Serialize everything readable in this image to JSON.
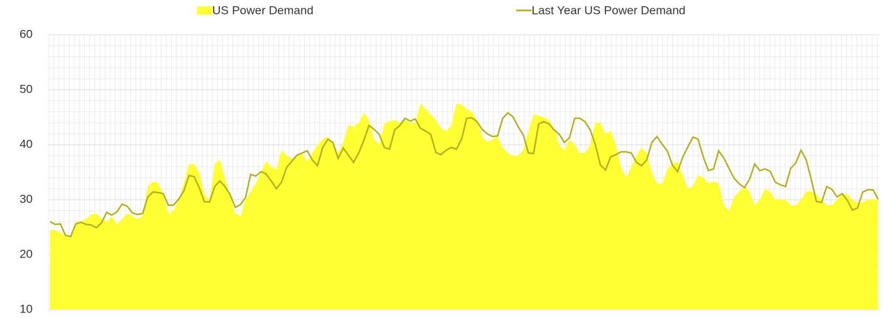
{
  "chart_data": {
    "type": "area-line",
    "ylim": [
      10,
      60
    ],
    "yticks": [
      10,
      20,
      30,
      40,
      50,
      60
    ],
    "grid": true,
    "series": [
      {
        "name": "US Power Demand",
        "type": "area",
        "color": "#ffff33",
        "values": [
          24.5,
          24.5,
          24,
          23.5,
          23,
          26,
          26,
          26.5,
          27.3,
          27.5,
          26.5,
          26,
          27,
          25.5,
          26.5,
          27.5,
          27,
          26.5,
          27,
          32.5,
          33.3,
          33,
          31,
          27.5,
          28,
          30,
          33,
          36.5,
          36.5,
          35,
          31,
          30,
          36.5,
          37.3,
          34,
          30.5,
          27.5,
          27,
          30,
          31.5,
          33,
          35,
          37,
          36,
          35.5,
          39,
          38,
          37.5,
          37.8,
          38.5,
          37,
          38.5,
          40,
          41,
          41.5,
          40,
          38.5,
          40.5,
          43.5,
          43.3,
          44,
          45.8,
          44.5,
          41,
          40,
          43.8,
          44.3,
          44.5,
          44,
          44.5,
          44,
          44,
          47.5,
          46.5,
          45.5,
          44.5,
          43,
          42.5,
          43.5,
          47.5,
          47.3,
          46.5,
          46,
          44.5,
          41.5,
          40.5,
          41,
          41.5,
          39.5,
          38.5,
          38,
          38,
          39,
          42.5,
          45.5,
          45.3,
          45,
          44.5,
          43,
          40,
          39,
          41,
          40,
          38.5,
          38.5,
          40,
          44,
          44,
          42,
          42.5,
          40,
          36,
          34,
          36,
          38,
          39.5,
          38.5,
          35,
          33,
          32.8,
          35.5,
          36.5,
          37,
          34.5,
          32,
          32.5,
          34.5,
          34,
          33,
          33.3,
          33,
          29,
          28,
          30.5,
          31.5,
          32.5,
          31.5,
          29,
          30,
          32,
          31.5,
          30,
          30,
          30,
          29,
          29,
          30,
          31.5,
          31.5,
          31,
          30,
          29,
          29,
          30,
          31,
          31,
          30,
          29.5,
          29.5,
          30,
          30,
          30
        ]
      },
      {
        "name": "Last Year US Power Demand",
        "type": "line",
        "color": "#b0b020",
        "values": [
          26,
          25.5,
          25.6,
          23.5,
          23.3,
          25.6,
          25.9,
          25.5,
          25.4,
          24.9,
          25.8,
          27.7,
          27.2,
          27.8,
          29.2,
          28.8,
          27.6,
          27.3,
          27.5,
          30.5,
          31.4,
          31.3,
          31.1,
          29,
          29,
          30.1,
          31.6,
          34.4,
          34.2,
          32.2,
          29.6,
          29.6,
          32.4,
          33.4,
          32.4,
          30.9,
          28.6,
          29.1,
          30.4,
          34.6,
          34.3,
          35.1,
          34.7,
          33.4,
          32,
          33.2,
          35.9,
          37,
          38.1,
          38.5,
          38.9,
          37.2,
          36.2,
          39.5,
          41,
          40.4,
          37.5,
          39.4,
          38.1,
          36.8,
          38.5,
          40.8,
          43.5,
          42.8,
          41.9,
          39.5,
          39.2,
          42.7,
          43.5,
          44.8,
          44.3,
          44.7,
          43,
          42.5,
          41.9,
          38.6,
          38.2,
          39,
          39.5,
          39.2,
          41,
          44.8,
          44.9,
          44.2,
          42.8,
          42,
          41.5,
          41.6,
          44.8,
          45.8,
          45.1,
          43.3,
          41.8,
          38.5,
          38.4,
          43.8,
          44.2,
          43.8,
          42.7,
          41.9,
          40.4,
          41.3,
          44.8,
          44.8,
          44.2,
          42.7,
          40.1,
          36.3,
          35.4,
          37.8,
          38.2,
          38.7,
          38.7,
          38.5,
          36.8,
          36.2,
          37.2,
          40.4,
          41.5,
          40.1,
          38.9,
          36.3,
          35.1,
          37.7,
          39.6,
          41.4,
          41,
          37.8,
          35.3,
          35.6,
          38.9,
          37.6,
          35.7,
          33.9,
          32.9,
          32.2,
          33.7,
          36.5,
          35.3,
          35.6,
          35.2,
          33.2,
          32.7,
          32.4,
          35.7,
          36.7,
          39,
          37.3,
          33.7,
          29.7,
          29.5,
          32.4,
          31.9,
          30.5,
          31.1,
          29.9,
          28.1,
          28.5,
          31.4,
          31.8,
          31.8,
          30.1
        ]
      }
    ]
  }
}
